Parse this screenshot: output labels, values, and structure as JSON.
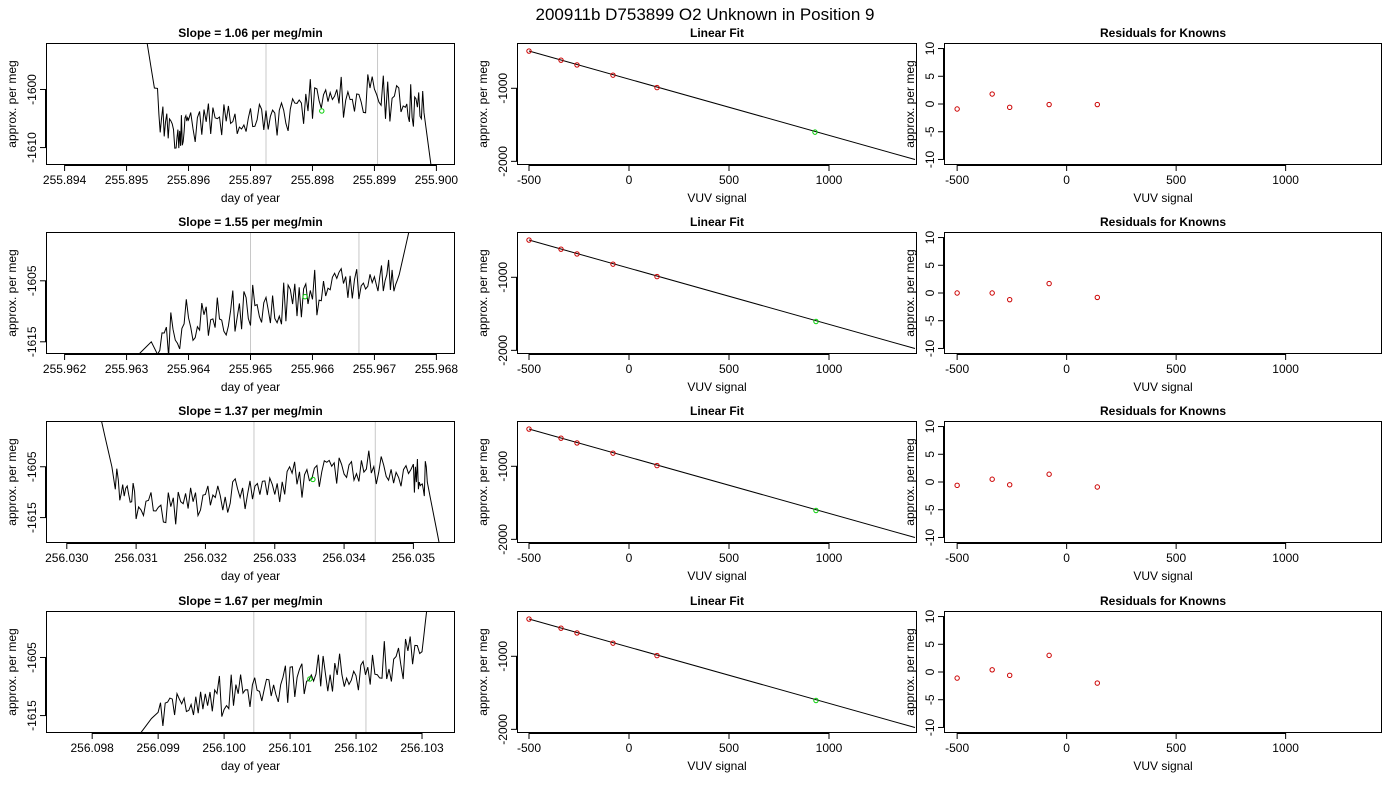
{
  "figure": {
    "title": "200911b      D753899   O2 Unknown in Position  9"
  },
  "colors": {
    "axis": "#000000",
    "trace": "#000000",
    "marker_vline": "#c8c8c8",
    "known_point": "#cc0000",
    "unknown_point": "#00cc00"
  },
  "chart_data": [
    {
      "type": "line",
      "row": 1,
      "panel": "time",
      "title": "Slope =  1.06  per meg/min",
      "xlabel": "day of year",
      "ylabel": "approx. per meg",
      "xlim": [
        255.8937,
        255.9003
      ],
      "ylim": [
        -1613,
        -1592
      ],
      "xticks": [
        "255.894",
        "255.895",
        "255.896",
        "255.897",
        "255.898",
        "255.899",
        "255.900"
      ],
      "yticks": [
        -1610,
        -1600
      ],
      "vlines": [
        255.89725,
        255.89905
      ],
      "unknown_point": {
        "x": 255.89815,
        "y": -1603.7
      },
      "trace_seed": 11,
      "series": [
        {
          "x": [
            255.8953,
            255.8955,
            255.8958,
            255.896,
            255.8965,
            255.897,
            255.8975,
            255.898,
            255.8985,
            255.899,
            255.8995,
            255.8998,
            255.9
          ],
          "y": [
            -1590,
            -1603,
            -1609,
            -1605,
            -1606,
            -1605.5,
            -1604,
            -1602,
            -1601.5,
            -1601,
            -1602,
            -1604,
            -1620
          ]
        }
      ]
    },
    {
      "type": "line",
      "row": 2,
      "panel": "time",
      "title": "Slope =  1.55  per meg/min",
      "xlabel": "day of year",
      "ylabel": "approx. per meg",
      "xlim": [
        255.9617,
        255.9683
      ],
      "ylim": [
        -1617,
        -1597
      ],
      "xticks": [
        "255.962",
        "255.963",
        "255.964",
        "255.965",
        "255.966",
        "255.967",
        "255.968"
      ],
      "yticks": [
        -1615,
        -1605
      ],
      "vlines": [
        255.965,
        255.96675
      ],
      "unknown_point": {
        "x": 255.96588,
        "y": -1607.6
      },
      "trace_seed": 22,
      "series": [
        {
          "x": [
            255.9631,
            255.9635,
            255.964,
            255.9645,
            255.965,
            255.9655,
            255.966,
            255.9665,
            255.967,
            255.9674,
            255.9676
          ],
          "y": [
            -1618,
            -1614,
            -1612,
            -1611,
            -1609.5,
            -1609,
            -1607,
            -1606,
            -1605,
            -1604,
            -1595
          ]
        }
      ]
    },
    {
      "type": "line",
      "row": 3,
      "panel": "time",
      "title": "Slope =  1.37  per meg/min",
      "xlabel": "day of year",
      "ylabel": "approx. per meg",
      "xlim": [
        256.0297,
        256.0356
      ],
      "ylim": [
        -1620,
        -1596
      ],
      "xticks": [
        "256.030",
        "256.031",
        "256.032",
        "256.033",
        "256.034",
        "256.035"
      ],
      "yticks": [
        -1615,
        -1605
      ],
      "vlines": [
        256.0327,
        256.03445
      ],
      "unknown_point": {
        "x": 256.03355,
        "y": -1607.5
      },
      "trace_seed": 33,
      "series": [
        {
          "x": [
            256.0305,
            256.0307,
            256.031,
            256.0315,
            256.032,
            256.0325,
            256.033,
            256.0335,
            256.034,
            256.0345,
            256.035,
            256.0352,
            256.0354
          ],
          "y": [
            -1596,
            -1608,
            -1612,
            -1614,
            -1611,
            -1610,
            -1608,
            -1607,
            -1606,
            -1605,
            -1606,
            -1608,
            -1622
          ]
        }
      ]
    },
    {
      "type": "line",
      "row": 4,
      "panel": "time",
      "title": "Slope =  1.67  per meg/min",
      "xlabel": "day of year",
      "ylabel": "approx. per meg",
      "xlim": [
        256.0973,
        256.1035
      ],
      "ylim": [
        -1618,
        -1597
      ],
      "xticks": [
        "256.098",
        "256.099",
        "256.100",
        "256.101",
        "256.102",
        "256.103"
      ],
      "yticks": [
        -1615,
        -1605
      ],
      "vlines": [
        256.10045,
        256.10215
      ],
      "unknown_point": {
        "x": 256.1013,
        "y": -1608.7
      },
      "trace_seed": 44,
      "series": [
        {
          "x": [
            256.0986,
            256.099,
            256.0995,
            256.1,
            256.1005,
            256.101,
            256.1015,
            256.102,
            256.1025,
            256.103,
            256.1031
          ],
          "y": [
            -1620,
            -1614,
            -1613,
            -1612,
            -1610,
            -1609,
            -1608,
            -1607,
            -1606,
            -1604,
            -1594
          ]
        }
      ]
    },
    {
      "type": "line",
      "row": 1,
      "panel": "fit",
      "title": "Linear Fit",
      "xlabel": "VUV signal",
      "ylabel": "approx. per meg",
      "xlim": [
        -560,
        1440
      ],
      "ylim": [
        -2050,
        -380
      ],
      "xticks": [
        -500,
        0,
        500,
        1000
      ],
      "yticks": [
        -2000,
        -1000
      ],
      "line": {
        "x": [
          -500,
          1430
        ],
        "y": [
          -490,
          -1975
        ]
      },
      "knowns": [
        {
          "x": -500,
          "y": -490
        },
        {
          "x": -340,
          "y": -615
        },
        {
          "x": -260,
          "y": -680
        },
        {
          "x": -80,
          "y": -820
        },
        {
          "x": 140,
          "y": -990
        }
      ],
      "unknown_point": {
        "x": 930,
        "y": -1600
      }
    },
    {
      "type": "line",
      "row": 2,
      "panel": "fit",
      "title": "Linear Fit",
      "xlabel": "VUV signal",
      "ylabel": "approx. per meg",
      "xlim": [
        -560,
        1440
      ],
      "ylim": [
        -2050,
        -380
      ],
      "xticks": [
        -500,
        0,
        500,
        1000
      ],
      "yticks": [
        -2000,
        -1000
      ],
      "line": {
        "x": [
          -500,
          1430
        ],
        "y": [
          -490,
          -1975
        ]
      },
      "knowns": [
        {
          "x": -500,
          "y": -490
        },
        {
          "x": -340,
          "y": -615
        },
        {
          "x": -260,
          "y": -680
        },
        {
          "x": -80,
          "y": -820
        },
        {
          "x": 140,
          "y": -990
        }
      ],
      "unknown_point": {
        "x": 935,
        "y": -1605
      }
    },
    {
      "type": "line",
      "row": 3,
      "panel": "fit",
      "title": "Linear Fit",
      "xlabel": "VUV signal",
      "ylabel": "approx. per meg",
      "xlim": [
        -560,
        1440
      ],
      "ylim": [
        -2050,
        -380
      ],
      "xticks": [
        -500,
        0,
        500,
        1000
      ],
      "yticks": [
        -2000,
        -1000
      ],
      "line": {
        "x": [
          -500,
          1430
        ],
        "y": [
          -490,
          -1975
        ]
      },
      "knowns": [
        {
          "x": -500,
          "y": -490
        },
        {
          "x": -340,
          "y": -615
        },
        {
          "x": -260,
          "y": -680
        },
        {
          "x": -80,
          "y": -820
        },
        {
          "x": 140,
          "y": -990
        }
      ],
      "unknown_point": {
        "x": 935,
        "y": -1605
      }
    },
    {
      "type": "line",
      "row": 4,
      "panel": "fit",
      "title": "Linear Fit",
      "xlabel": "VUV signal",
      "ylabel": "approx. per meg",
      "xlim": [
        -560,
        1440
      ],
      "ylim": [
        -2050,
        -380
      ],
      "xticks": [
        -500,
        0,
        500,
        1000
      ],
      "yticks": [
        -2000,
        -1000
      ],
      "line": {
        "x": [
          -500,
          1430
        ],
        "y": [
          -490,
          -1975
        ]
      },
      "knowns": [
        {
          "x": -500,
          "y": -490
        },
        {
          "x": -340,
          "y": -615
        },
        {
          "x": -260,
          "y": -680
        },
        {
          "x": -80,
          "y": -820
        },
        {
          "x": 140,
          "y": -990
        }
      ],
      "unknown_point": {
        "x": 935,
        "y": -1605
      }
    },
    {
      "type": "scatter",
      "row": 1,
      "panel": "resid",
      "title": "Residuals for Knowns",
      "xlabel": "VUV signal",
      "ylabel": "approx. per meg",
      "xlim": [
        -560,
        1440
      ],
      "ylim": [
        -11,
        11
      ],
      "xticks": [
        -500,
        0,
        500,
        1000
      ],
      "yticks": [
        -10,
        -5,
        0,
        5,
        10
      ],
      "points": [
        {
          "x": -500,
          "y": -0.9
        },
        {
          "x": -340,
          "y": 1.8
        },
        {
          "x": -260,
          "y": -0.6
        },
        {
          "x": -80,
          "y": -0.1
        },
        {
          "x": 140,
          "y": -0.1
        }
      ]
    },
    {
      "type": "scatter",
      "row": 2,
      "panel": "resid",
      "title": "Residuals for Knowns",
      "xlabel": "VUV signal",
      "ylabel": "approx. per meg",
      "xlim": [
        -560,
        1440
      ],
      "ylim": [
        -11,
        11
      ],
      "xticks": [
        -500,
        0,
        500,
        1000
      ],
      "yticks": [
        -10,
        -5,
        0,
        5,
        10
      ],
      "points": [
        {
          "x": -500,
          "y": 0.0
        },
        {
          "x": -340,
          "y": 0.0
        },
        {
          "x": -260,
          "y": -1.2
        },
        {
          "x": -80,
          "y": 1.7
        },
        {
          "x": 140,
          "y": -0.8
        }
      ]
    },
    {
      "type": "scatter",
      "row": 3,
      "panel": "resid",
      "title": "Residuals for Knowns",
      "xlabel": "VUV signal",
      "ylabel": "approx. per meg",
      "xlim": [
        -560,
        1440
      ],
      "ylim": [
        -11,
        11
      ],
      "xticks": [
        -500,
        0,
        500,
        1000
      ],
      "yticks": [
        -10,
        -5,
        0,
        5,
        10
      ],
      "points": [
        {
          "x": -500,
          "y": -0.6
        },
        {
          "x": -340,
          "y": 0.5
        },
        {
          "x": -260,
          "y": -0.5
        },
        {
          "x": -80,
          "y": 1.4
        },
        {
          "x": 140,
          "y": -0.9
        }
      ]
    },
    {
      "type": "scatter",
      "row": 4,
      "panel": "resid",
      "title": "Residuals for Knowns",
      "xlabel": "VUV signal",
      "ylabel": "approx. per meg",
      "xlim": [
        -560,
        1440
      ],
      "ylim": [
        -11,
        11
      ],
      "xticks": [
        -500,
        0,
        500,
        1000
      ],
      "yticks": [
        -10,
        -5,
        0,
        5,
        10
      ],
      "points": [
        {
          "x": -500,
          "y": -1.1
        },
        {
          "x": -340,
          "y": 0.4
        },
        {
          "x": -260,
          "y": -0.6
        },
        {
          "x": -80,
          "y": 3.0
        },
        {
          "x": 140,
          "y": -2.0
        }
      ]
    }
  ]
}
